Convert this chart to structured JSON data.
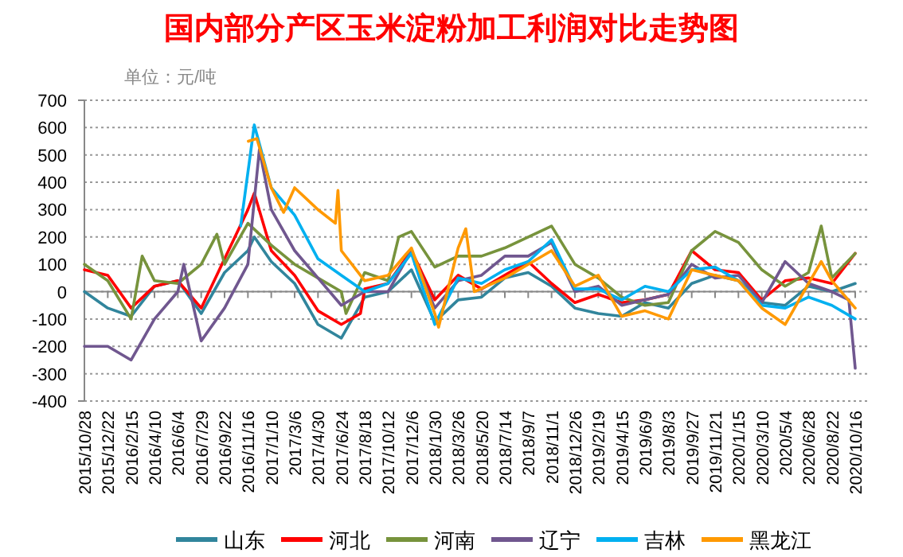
{
  "chart_data": {
    "type": "line",
    "title": "国内部分产区玉米淀粉加工利润对比走势图",
    "ylabel": "单位：元/吨",
    "xlim": [
      "2015-10-28",
      "2020-10-16"
    ],
    "xticks": [
      {
        "value": "2015-10-28",
        "label": "2015/10/28"
      },
      {
        "value": "2015-12-22",
        "label": "2015/12/22"
      },
      {
        "value": "2016-02-15",
        "label": "2016/2/15"
      },
      {
        "value": "2016-04-10",
        "label": "2016/4/10"
      },
      {
        "value": "2016-06-04",
        "label": "2016/6/4"
      },
      {
        "value": "2016-07-29",
        "label": "2016/7/29"
      },
      {
        "value": "2016-09-22",
        "label": "2016/9/22"
      },
      {
        "value": "2016-11-16",
        "label": "2016/11/16"
      },
      {
        "value": "2017-01-10",
        "label": "2017/1/10"
      },
      {
        "value": "2017-03-06",
        "label": "2017/3/6"
      },
      {
        "value": "2017-04-30",
        "label": "2017/4/30"
      },
      {
        "value": "2017-06-24",
        "label": "2017/6/24"
      },
      {
        "value": "2017-08-18",
        "label": "2017/8/18"
      },
      {
        "value": "2017-10-12",
        "label": "2017/10/12"
      },
      {
        "value": "2017-12-06",
        "label": "2017/12/6"
      },
      {
        "value": "2018-01-30",
        "label": "2018/1/30"
      },
      {
        "value": "2018-03-26",
        "label": "2018/3/26"
      },
      {
        "value": "2018-05-20",
        "label": "2018/5/20"
      },
      {
        "value": "2018-07-14",
        "label": "2018/7/14"
      },
      {
        "value": "2018-09-07",
        "label": "2018/9/7"
      },
      {
        "value": "2018-11-01",
        "label": "2018/11/1"
      },
      {
        "value": "2018-12-26",
        "label": "2018/12/26"
      },
      {
        "value": "2019-02-19",
        "label": "2019/2/19"
      },
      {
        "value": "2019-04-15",
        "label": "2019/4/15"
      },
      {
        "value": "2019-06-09",
        "label": "2019/6/9"
      },
      {
        "value": "2019-08-03",
        "label": "2019/8/3"
      },
      {
        "value": "2019-09-27",
        "label": "2019/9/27"
      },
      {
        "value": "2019-11-21",
        "label": "2019/11/21"
      },
      {
        "value": "2020-01-15",
        "label": "2020/1/15"
      },
      {
        "value": "2020-03-10",
        "label": "2020/3/10"
      },
      {
        "value": "2020-05-04",
        "label": "2020/5/4"
      },
      {
        "value": "2020-06-28",
        "label": "2020/6/28"
      },
      {
        "value": "2020-08-22",
        "label": "2020/8/22"
      },
      {
        "value": "2020-10-16",
        "label": "2020/10/16"
      }
    ],
    "ylim": [
      -400,
      700
    ],
    "yticks": [
      -400,
      -300,
      -200,
      -100,
      0,
      100,
      200,
      300,
      400,
      500,
      600,
      700
    ],
    "grid": "y",
    "legend": "bottom",
    "marker": "none",
    "line_style": "solid",
    "series": [
      {
        "name": "山东",
        "color": "#31859c",
        "x": [
          "2015-10-28",
          "2015-12-22",
          "2016-02-15",
          "2016-04-10",
          "2016-06-04",
          "2016-07-29",
          "2016-09-22",
          "2016-11-16",
          "2016-12-01",
          "2017-01-10",
          "2017-03-06",
          "2017-04-30",
          "2017-06-24",
          "2017-08-18",
          "2017-10-12",
          "2017-12-06",
          "2018-01-30",
          "2018-03-26",
          "2018-05-20",
          "2018-07-14",
          "2018-09-07",
          "2018-11-01",
          "2018-12-26",
          "2019-02-19",
          "2019-04-15",
          "2019-06-09",
          "2019-08-03",
          "2019-09-27",
          "2019-11-21",
          "2020-01-15",
          "2020-03-10",
          "2020-05-04",
          "2020-06-28",
          "2020-08-22",
          "2020-10-16"
        ],
        "values": [
          0,
          -60,
          -90,
          20,
          40,
          -80,
          70,
          150,
          200,
          110,
          30,
          -120,
          -170,
          -20,
          0,
          80,
          -110,
          -30,
          -20,
          50,
          70,
          20,
          -60,
          -80,
          -90,
          -40,
          -60,
          30,
          60,
          40,
          -40,
          -50,
          20,
          0,
          30
        ]
      },
      {
        "name": "河北",
        "color": "#ff0000",
        "x": [
          "2015-10-28",
          "2015-12-22",
          "2016-02-15",
          "2016-04-10",
          "2016-06-04",
          "2016-07-29",
          "2016-09-22",
          "2016-11-16",
          "2016-12-01",
          "2017-01-10",
          "2017-03-06",
          "2017-04-30",
          "2017-06-24",
          "2017-08-08",
          "2017-08-18",
          "2017-10-12",
          "2017-12-06",
          "2018-01-30",
          "2018-03-26",
          "2018-05-20",
          "2018-07-14",
          "2018-09-07",
          "2018-11-01",
          "2018-12-26",
          "2019-02-19",
          "2019-04-15",
          "2019-06-09",
          "2019-08-03",
          "2019-09-27",
          "2019-11-21",
          "2020-01-15",
          "2020-03-10",
          "2020-05-04",
          "2020-06-28",
          "2020-08-22",
          "2020-10-16"
        ],
        "values": [
          80,
          60,
          -60,
          20,
          40,
          -60,
          120,
          300,
          360,
          150,
          60,
          -70,
          -120,
          -80,
          10,
          30,
          150,
          -30,
          60,
          10,
          60,
          110,
          30,
          -40,
          -10,
          -40,
          -30,
          -10,
          150,
          80,
          70,
          -30,
          40,
          50,
          30,
          140
        ]
      },
      {
        "name": "河南",
        "color": "#77933c",
        "x": [
          "2015-10-28",
          "2015-12-22",
          "2016-02-15",
          "2016-03-12",
          "2016-04-10",
          "2016-06-04",
          "2016-07-29",
          "2016-09-04",
          "2016-09-22",
          "2016-11-16",
          "2017-01-10",
          "2017-03-06",
          "2017-04-30",
          "2017-06-24",
          "2017-07-05",
          "2017-08-18",
          "2017-10-12",
          "2017-11-06",
          "2017-12-06",
          "2018-01-30",
          "2018-03-26",
          "2018-05-20",
          "2018-07-14",
          "2018-09-07",
          "2018-11-01",
          "2018-12-26",
          "2019-02-19",
          "2019-04-15",
          "2019-06-09",
          "2019-08-03",
          "2019-09-27",
          "2019-11-21",
          "2020-01-15",
          "2020-03-10",
          "2020-05-04",
          "2020-06-28",
          "2020-07-28",
          "2020-08-22",
          "2020-10-16"
        ],
        "values": [
          100,
          40,
          -100,
          130,
          40,
          30,
          100,
          210,
          100,
          250,
          170,
          100,
          50,
          0,
          -80,
          70,
          40,
          200,
          220,
          90,
          130,
          130,
          160,
          200,
          240,
          100,
          50,
          -20,
          -50,
          -40,
          150,
          220,
          180,
          80,
          20,
          70,
          240,
          50,
          140
        ]
      },
      {
        "name": "辽宁",
        "color": "#70578f",
        "x": [
          "2015-10-28",
          "2015-12-22",
          "2016-02-15",
          "2016-04-10",
          "2016-06-04",
          "2016-06-18",
          "2016-07-29",
          "2016-09-22",
          "2016-11-16",
          "2016-12-13",
          "2017-01-10",
          "2017-03-06",
          "2017-04-30",
          "2017-06-24",
          "2017-08-18",
          "2017-10-12",
          "2017-12-06",
          "2018-01-30",
          "2018-03-26",
          "2018-05-20",
          "2018-07-14",
          "2018-09-07",
          "2018-11-01",
          "2018-12-26",
          "2019-02-19",
          "2019-04-15",
          "2019-06-09",
          "2019-08-03",
          "2019-09-27",
          "2019-11-21",
          "2020-01-15",
          "2020-03-10",
          "2020-05-04",
          "2020-06-28",
          "2020-08-22",
          "2020-10-01",
          "2020-10-16"
        ],
        "values": [
          -200,
          -200,
          -250,
          -100,
          0,
          100,
          -180,
          -60,
          100,
          520,
          300,
          150,
          50,
          -50,
          0,
          0,
          150,
          -60,
          40,
          60,
          130,
          130,
          180,
          0,
          20,
          -50,
          -30,
          -10,
          100,
          50,
          60,
          -40,
          110,
          30,
          0,
          -30,
          -280
        ]
      },
      {
        "name": "吉林",
        "color": "#00b0f0",
        "x": [
          "2016-10-30",
          "2016-12-01",
          "2017-01-10",
          "2017-03-06",
          "2017-04-30",
          "2017-06-24",
          "2017-08-18",
          "2017-10-12",
          "2017-12-06",
          "2018-01-30",
          "2018-03-26",
          "2018-05-20",
          "2018-07-14",
          "2018-09-07",
          "2018-11-01",
          "2018-12-26",
          "2019-02-19",
          "2019-04-15",
          "2019-06-09",
          "2019-08-03",
          "2019-09-27",
          "2019-11-21",
          "2020-01-15",
          "2020-03-10",
          "2020-05-04",
          "2020-06-28",
          "2020-08-22",
          "2020-10-16"
        ],
        "values": [
          240,
          610,
          380,
          280,
          120,
          60,
          0,
          30,
          140,
          -120,
          50,
          30,
          80,
          110,
          190,
          10,
          10,
          -30,
          20,
          0,
          80,
          90,
          40,
          -50,
          -60,
          -20,
          -50,
          -100
        ]
      },
      {
        "name": "黑龙江",
        "color": "#ff9900",
        "x": [
          "2016-11-17",
          "2016-12-07",
          "2017-01-10",
          "2017-02-08",
          "2017-03-06",
          "2017-04-30",
          "2017-06-10",
          "2017-06-16",
          "2017-06-24",
          "2017-08-18",
          "2017-10-12",
          "2017-12-06",
          "2018-01-30",
          "2018-02-08",
          "2018-03-26",
          "2018-04-13",
          "2018-05-03",
          "2018-07-14",
          "2018-09-07",
          "2018-11-01",
          "2018-12-26",
          "2019-02-19",
          "2019-04-15",
          "2019-06-09",
          "2019-08-03",
          "2019-09-27",
          "2019-11-21",
          "2020-01-15",
          "2020-03-10",
          "2020-05-04",
          "2020-06-28",
          "2020-07-28",
          "2020-08-22",
          "2020-10-16"
        ],
        "values": [
          550,
          560,
          380,
          290,
          380,
          300,
          250,
          370,
          150,
          40,
          60,
          160,
          -80,
          -130,
          160,
          230,
          0,
          50,
          100,
          150,
          20,
          60,
          -90,
          -70,
          -100,
          80,
          60,
          40,
          -60,
          -120,
          30,
          110,
          40,
          -60
        ]
      }
    ]
  }
}
